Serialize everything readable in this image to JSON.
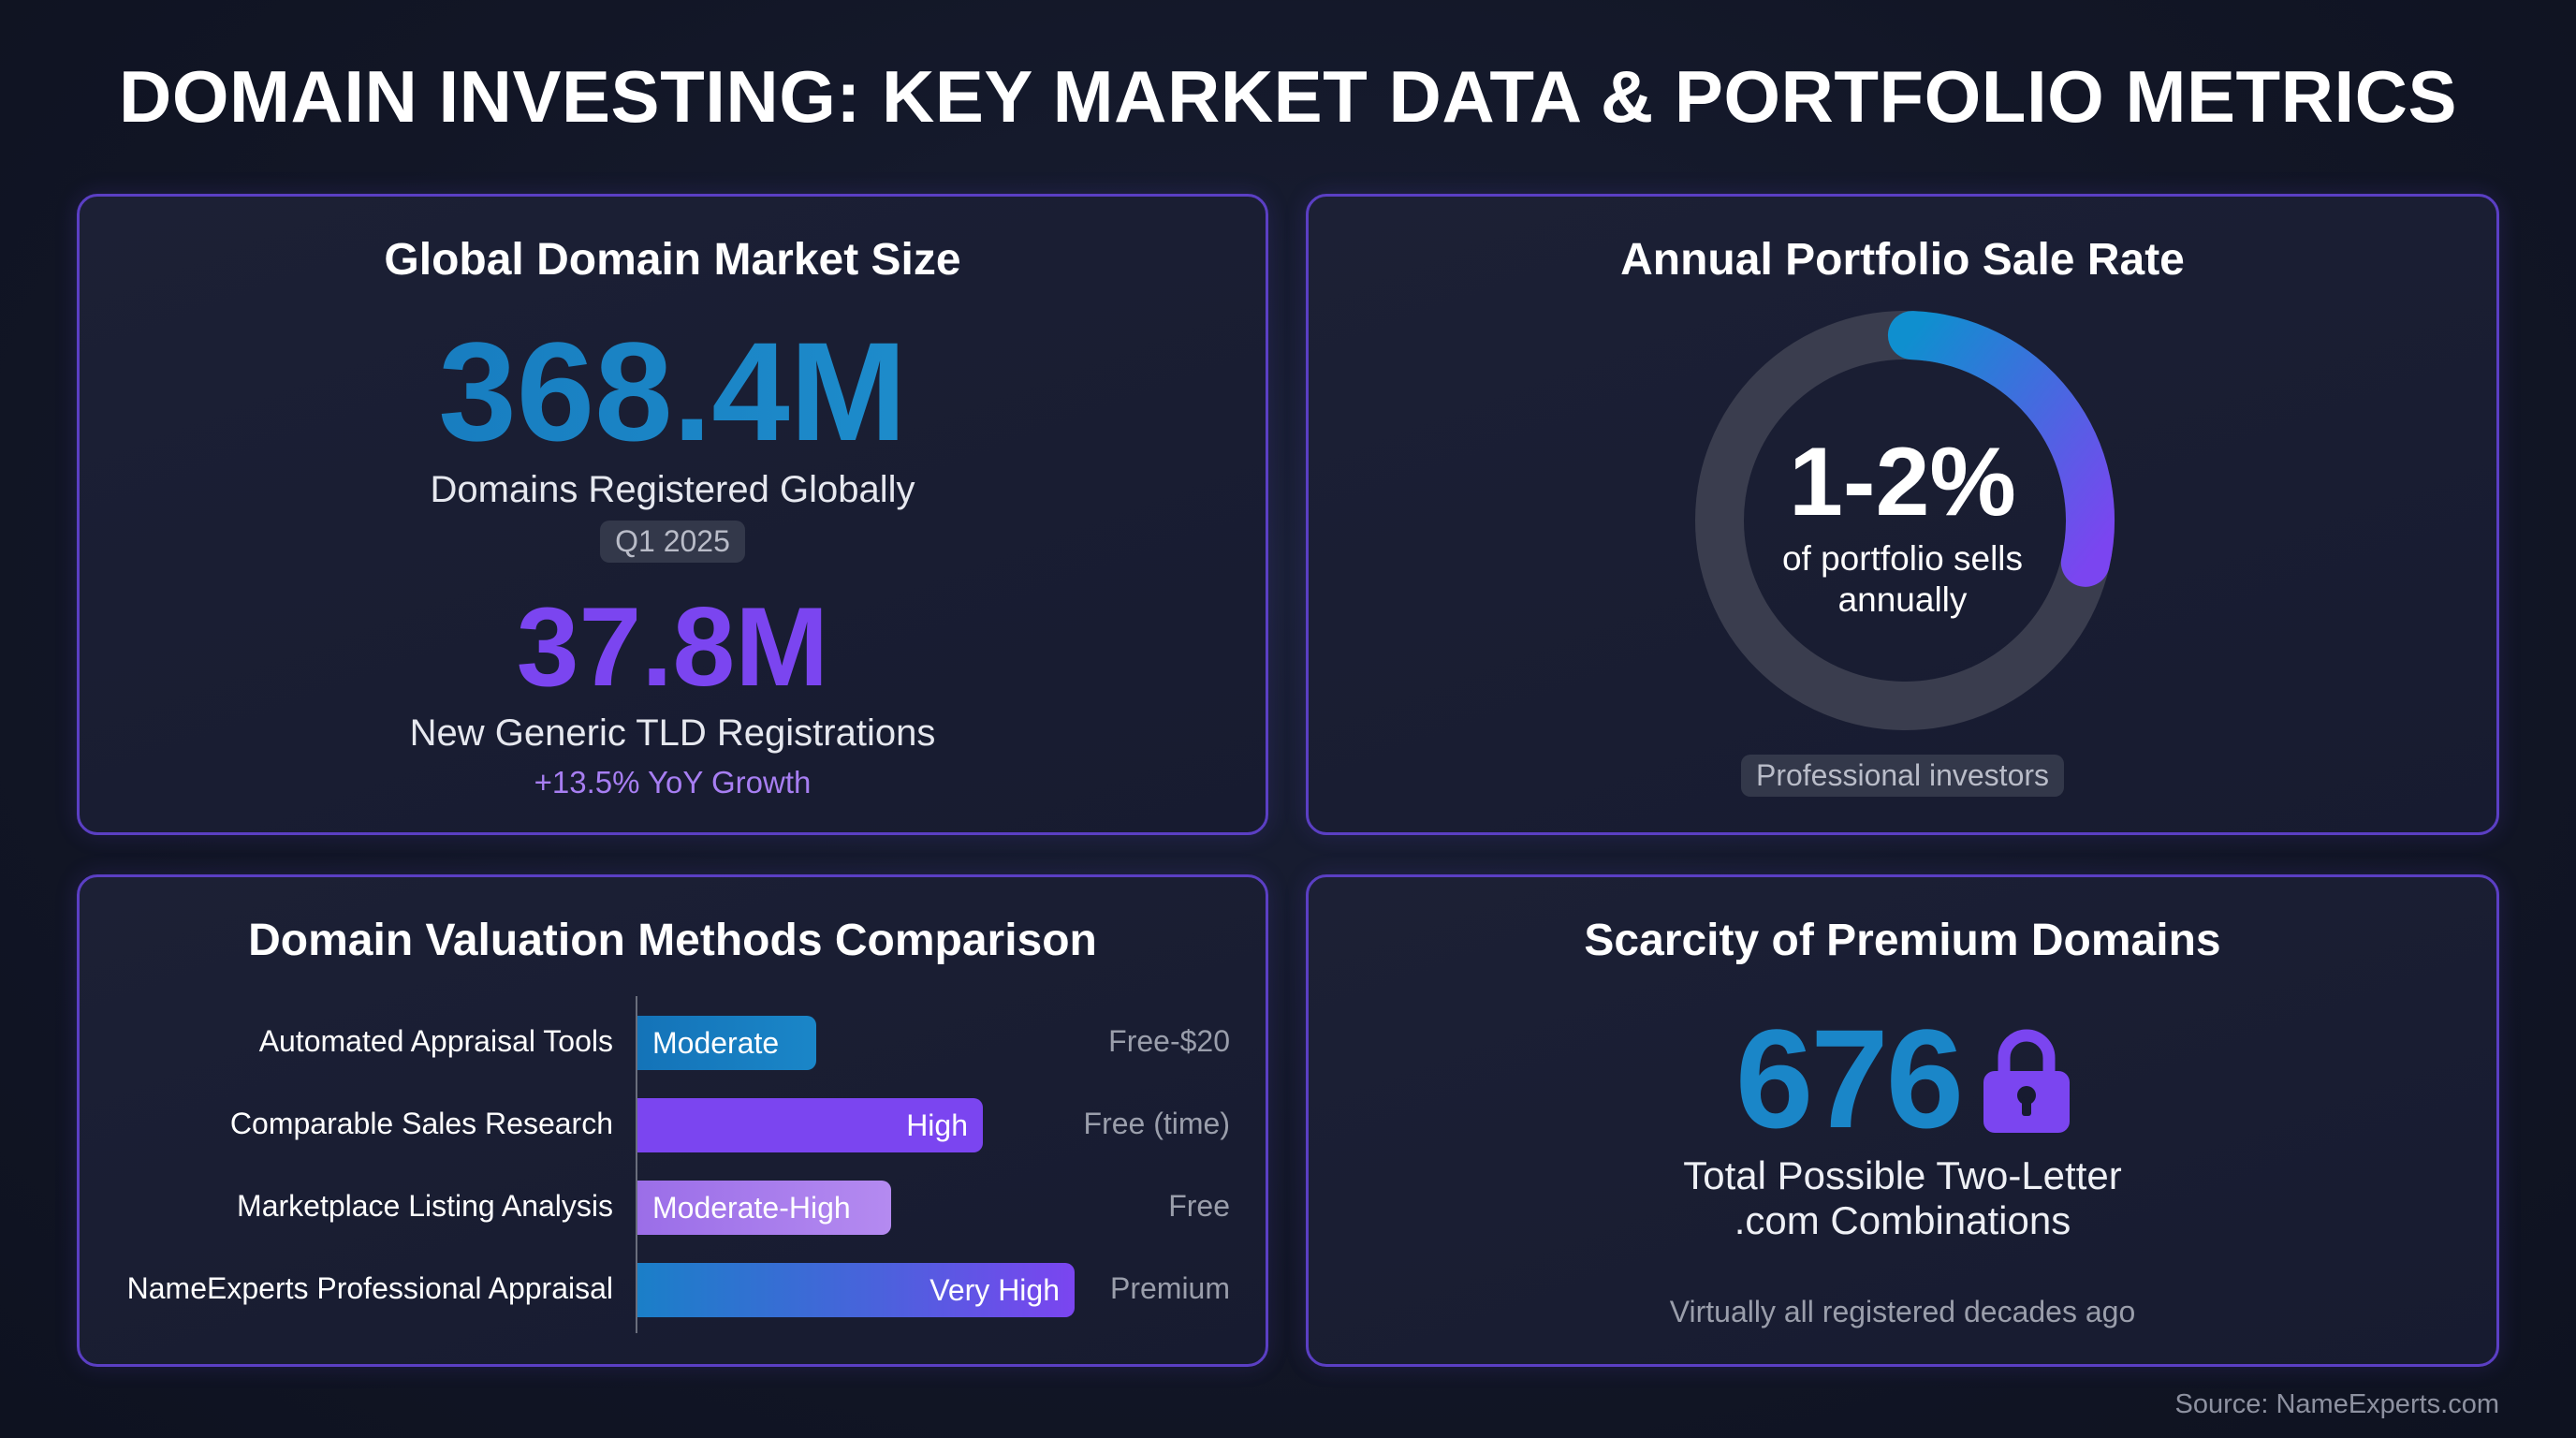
{
  "title": "DOMAIN INVESTING: KEY MARKET DATA & PORTFOLIO METRICS",
  "colors": {
    "blue": "#1a86c8",
    "purple": "#7b45f0",
    "light_purple": "#a77ef2",
    "border": "#5b3fc4"
  },
  "market": {
    "title": "Global Domain Market Size",
    "big": "368.4M",
    "big_label": "Domains Registered Globally",
    "badge": "Q1 2025",
    "second": "37.8M",
    "second_label": "New Generic TLD Registrations",
    "growth": "+13.5% YoY Growth"
  },
  "sale_rate": {
    "title": "Annual Portfolio Sale Rate",
    "value": "1-2%",
    "line1": "of portfolio sells",
    "line2": "annually",
    "badge": "Professional investors",
    "arc_fill_fraction": 0.28
  },
  "valuation": {
    "title": "Domain Valuation Methods Comparison",
    "rows": [
      {
        "method": "Automated Appraisal Tools",
        "rating": "Moderate",
        "cost": "Free-$20",
        "level": 0.41,
        "style": "blue",
        "align": "left"
      },
      {
        "method": "Comparable Sales Research",
        "rating": "High",
        "cost": "Free (time)",
        "level": 0.79,
        "style": "purple",
        "align": "right"
      },
      {
        "method": "Marketplace Listing Analysis",
        "rating": "Moderate-High",
        "cost": "Free",
        "level": 0.58,
        "style": "light",
        "align": "left"
      },
      {
        "method": "NameExperts Professional Appraisal",
        "rating": "Very High",
        "cost": "Premium",
        "level": 1.0,
        "style": "gradient",
        "align": "right"
      }
    ]
  },
  "scarcity": {
    "title": "Scarcity of Premium Domains",
    "value": "676",
    "icon": "lock-icon",
    "line1": "Total Possible Two-Letter",
    "line2": ".com Combinations",
    "note": "Virtually all registered decades ago"
  },
  "source": "Source: NameExperts.com"
}
